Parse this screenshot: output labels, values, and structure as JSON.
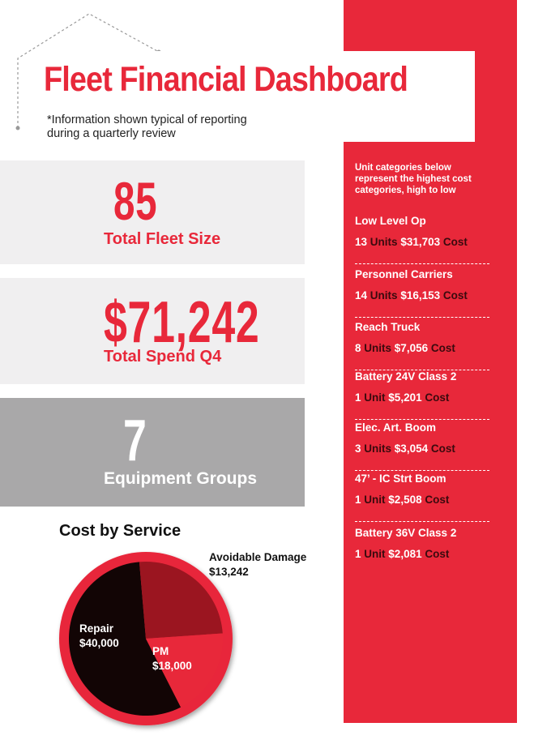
{
  "header": {
    "title": "Fleet Financial Dashboard",
    "subtitle_line1": "*Information shown typical of reporting",
    "subtitle_line2": "during a quarterly review"
  },
  "stats": [
    {
      "value": "85",
      "label": "Total Fleet Size"
    },
    {
      "value": "$71,242",
      "label": "Total Spend Q4"
    },
    {
      "value": "7",
      "label": "Equipment Groups"
    }
  ],
  "sidebar": {
    "intro_line1": "Unit categories below",
    "intro_line2": "represent the highest cost",
    "intro_line3": "categories, high to low",
    "categories": [
      {
        "name": "Low Level Op",
        "count": "13",
        "unit_word": "Units",
        "cost": "$31,703",
        "cost_word": "Cost"
      },
      {
        "name": "Personnel Carriers",
        "count": "14",
        "unit_word": "Units",
        "cost": "$16,153",
        "cost_word": "Cost"
      },
      {
        "name": "Reach Truck",
        "count": "8",
        "unit_word": "Units",
        "cost": "$7,056",
        "cost_word": "Cost"
      },
      {
        "name": "Battery 24V Class 2",
        "count": "1",
        "unit_word": "Unit",
        "cost": "$5,201",
        "cost_word": "Cost"
      },
      {
        "name": "Elec. Art. Boom",
        "count": "3",
        "unit_word": "Units",
        "cost": "$3,054",
        "cost_word": "Cost"
      },
      {
        "name": "47’ - IC Strt Boom",
        "count": "1",
        "unit_word": "Unit",
        "cost": "$2,508",
        "cost_word": "Cost"
      },
      {
        "name": "Battery 36V Class 2",
        "count": "1",
        "unit_word": "Unit",
        "cost": "$2,081",
        "cost_word": "Cost"
      }
    ]
  },
  "colors": {
    "accent_red": "#e8283a",
    "dark_red": "#9b1520",
    "black": "#120505",
    "light_gray": "#f0eff0",
    "mid_gray": "#a9a8a9"
  },
  "chart_data": {
    "type": "pie",
    "title": "Cost by Service",
    "slices": [
      {
        "name": "Repair",
        "label": "$40,000",
        "value": 40000,
        "color": "#120505"
      },
      {
        "name": "PM",
        "label": "$18,000",
        "value": 18000,
        "color": "#9b1520"
      },
      {
        "name": "Avoidable Damage",
        "label": "$13,242",
        "value": 13242,
        "color": "#e8283a"
      }
    ]
  }
}
